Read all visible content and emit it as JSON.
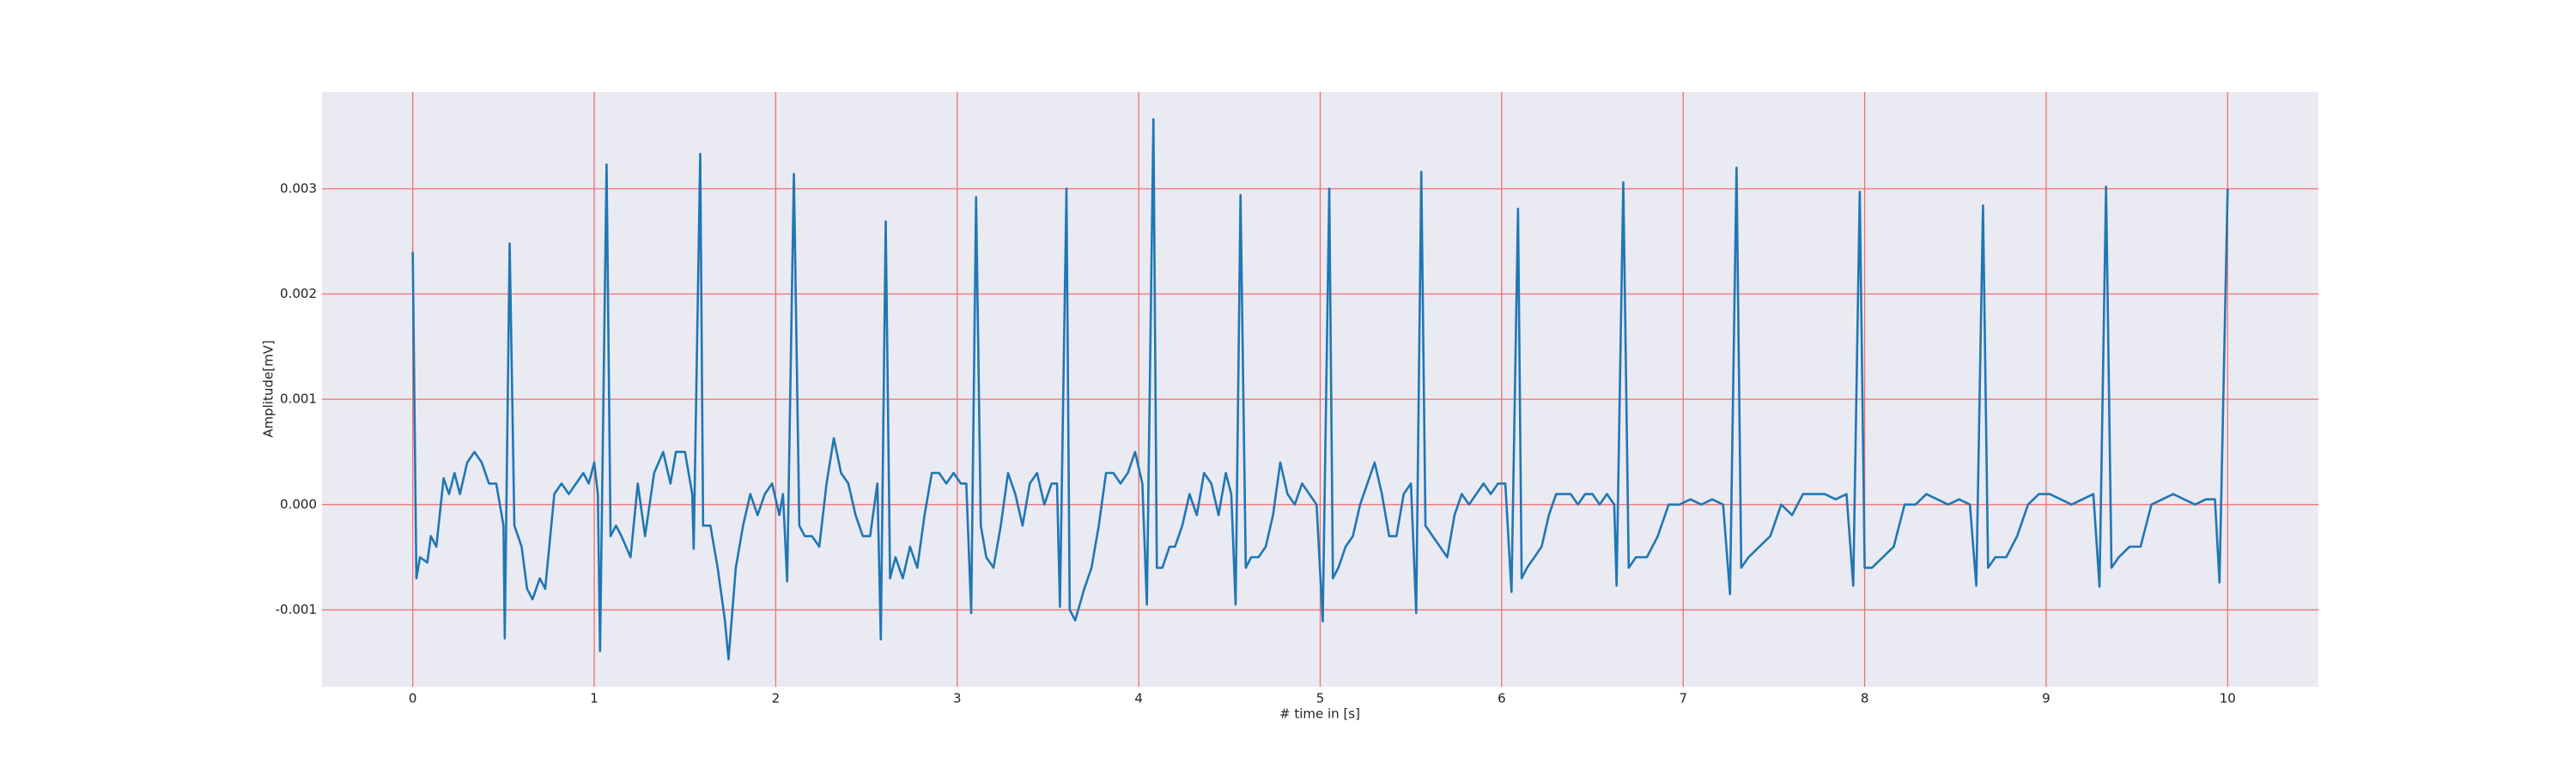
{
  "chart_data": {
    "type": "line",
    "xlabel": "# time in [s]",
    "ylabel": "Amplitude[mV]",
    "xlim": [
      -0.5,
      10.5
    ],
    "ylim": [
      -0.00173,
      0.00392
    ],
    "xticks": [
      0,
      1,
      2,
      3,
      4,
      5,
      6,
      7,
      8,
      9,
      10
    ],
    "yticks": [
      -0.001,
      {
        "value": 0,
        "label": "0.000"
      },
      0.001,
      0.002,
      0.003
    ],
    "grid": true,
    "grid_color": "#f07070",
    "background": "#eaeaf2",
    "color": "#1f77b4",
    "x": [
      0,
      0.02,
      0.04,
      0.08,
      0.1,
      0.13,
      0.17,
      0.2,
      0.23,
      0.26,
      0.3,
      0.34,
      0.38,
      0.42,
      0.46,
      0.5,
      0.507,
      0.534,
      0.56,
      0.6,
      0.63,
      0.66,
      0.7,
      0.73,
      0.78,
      0.82,
      0.86,
      0.9,
      0.94,
      0.97,
      1.0,
      1.02,
      1.032,
      1.068,
      1.09,
      1.12,
      1.15,
      1.2,
      1.24,
      1.28,
      1.33,
      1.38,
      1.42,
      1.45,
      1.5,
      1.54,
      1.548,
      1.584,
      1.6,
      1.64,
      1.68,
      1.72,
      1.74,
      1.78,
      1.82,
      1.86,
      1.9,
      1.94,
      1.98,
      2.02,
      2.04,
      2.063,
      2.1,
      2.13,
      2.16,
      2.2,
      2.24,
      2.28,
      2.32,
      2.36,
      2.4,
      2.44,
      2.48,
      2.52,
      2.56,
      2.579,
      2.606,
      2.63,
      2.66,
      2.7,
      2.74,
      2.78,
      2.82,
      2.86,
      2.9,
      2.94,
      2.98,
      3.02,
      3.05,
      3.077,
      3.104,
      3.13,
      3.16,
      3.2,
      3.24,
      3.28,
      3.32,
      3.36,
      3.4,
      3.44,
      3.48,
      3.52,
      3.55,
      3.566,
      3.602,
      3.62,
      3.65,
      3.7,
      3.74,
      3.78,
      3.82,
      3.86,
      3.9,
      3.94,
      3.98,
      4.02,
      4.045,
      4.081,
      4.1,
      4.13,
      4.17,
      4.2,
      4.24,
      4.28,
      4.32,
      4.36,
      4.4,
      4.44,
      4.48,
      4.51,
      4.534,
      4.561,
      4.59,
      4.62,
      4.66,
      4.7,
      4.74,
      4.78,
      4.82,
      4.86,
      4.9,
      4.94,
      4.98,
      5.014,
      5.05,
      5.07,
      5.1,
      5.14,
      5.18,
      5.22,
      5.26,
      5.3,
      5.34,
      5.38,
      5.42,
      5.46,
      5.5,
      5.529,
      5.557,
      5.58,
      5.62,
      5.66,
      5.7,
      5.74,
      5.78,
      5.82,
      5.86,
      5.9,
      5.94,
      5.98,
      6.02,
      6.054,
      6.09,
      6.11,
      6.14,
      6.18,
      6.22,
      6.26,
      6.3,
      6.34,
      6.38,
      6.42,
      6.46,
      6.5,
      6.54,
      6.58,
      6.62,
      6.633,
      6.67,
      6.7,
      6.74,
      6.8,
      6.86,
      6.92,
      6.98,
      7.04,
      7.1,
      7.16,
      7.22,
      7.258,
      7.294,
      7.32,
      7.36,
      7.42,
      7.48,
      7.54,
      7.6,
      7.66,
      7.72,
      7.78,
      7.84,
      7.9,
      7.937,
      7.973,
      8.0,
      8.04,
      8.1,
      8.16,
      8.22,
      8.28,
      8.34,
      8.4,
      8.46,
      8.52,
      8.58,
      8.615,
      8.652,
      8.68,
      8.72,
      8.78,
      8.84,
      8.9,
      8.96,
      9.02,
      9.08,
      9.14,
      9.2,
      9.26,
      9.294,
      9.33,
      9.36,
      9.4,
      9.46,
      9.52,
      9.58,
      9.64,
      9.7,
      9.76,
      9.82,
      9.88,
      9.93,
      9.955,
      10.0
    ],
    "values": [
      0.0024,
      -0.0007,
      -0.0005,
      -0.00055,
      -0.0003,
      -0.0004,
      0.00025,
      0.0001,
      0.0003,
      0.0001,
      0.0004,
      0.0005,
      0.0004,
      0.0002,
      0.0002,
      -0.0002,
      -0.00127,
      0.00248,
      -0.0002,
      -0.0004,
      -0.0008,
      -0.0009,
      -0.0007,
      -0.0008,
      0.0001,
      0.0002,
      0.0001,
      0.0002,
      0.0003,
      0.0002,
      0.0004,
      0.0001,
      -0.00139,
      0.00323,
      -0.0003,
      -0.0002,
      -0.0003,
      -0.0005,
      0.0002,
      -0.0003,
      0.0003,
      0.0005,
      0.0002,
      0.0005,
      0.0005,
      0.0001,
      -0.00042,
      0.00333,
      -0.0002,
      -0.0002,
      -0.0006,
      -0.0011,
      -0.00147,
      -0.0006,
      -0.0002,
      0.0001,
      -0.0001,
      0.0001,
      0.0002,
      -0.0001,
      0.0001,
      -0.00073,
      0.00314,
      -0.0002,
      -0.0003,
      -0.0003,
      -0.0004,
      0.0002,
      0.00063,
      0.0003,
      0.0002,
      -0.0001,
      -0.0003,
      -0.0003,
      0.0002,
      -0.00128,
      0.00269,
      -0.0007,
      -0.0005,
      -0.0007,
      -0.0004,
      -0.0006,
      -0.0001,
      0.0003,
      0.0003,
      0.0002,
      0.0003,
      0.0002,
      0.0002,
      -0.00103,
      0.00292,
      -0.0002,
      -0.0005,
      -0.0006,
      -0.0002,
      0.0003,
      0.0001,
      -0.0002,
      0.0002,
      0.0003,
      0,
      0.0002,
      0.0002,
      -0.00097,
      0.003,
      -0.001,
      -0.0011,
      -0.0008,
      -0.0006,
      -0.0002,
      0.0003,
      0.0003,
      0.0002,
      0.0003,
      0.0005,
      0.0002,
      -0.00095,
      0.00366,
      -0.0006,
      -0.0006,
      -0.0004,
      -0.0004,
      -0.0002,
      0.0001,
      -0.0001,
      0.0003,
      0.0002,
      -0.0001,
      0.0003,
      0.0001,
      -0.00095,
      0.00294,
      -0.0006,
      -0.0005,
      -0.0005,
      -0.0004,
      -0.0001,
      0.0004,
      0.0001,
      0,
      0.0002,
      0.0001,
      0,
      -0.00111,
      0.003,
      -0.0007,
      -0.0006,
      -0.0004,
      -0.0003,
      0,
      0.0002,
      0.0004,
      0.0001,
      -0.0003,
      -0.0003,
      0.0001,
      0.0002,
      -0.00103,
      0.00316,
      -0.0002,
      -0.0003,
      -0.0004,
      -0.0005,
      -0.0001,
      0.0001,
      0,
      0.0001,
      0.0002,
      0.0001,
      0.0002,
      0.0002,
      -0.00083,
      0.00281,
      -0.0007,
      -0.0006,
      -0.0005,
      -0.0004,
      -0.0001,
      0.0001,
      0.0001,
      0.0001,
      0,
      0.0001,
      0.0001,
      0,
      0.0001,
      0,
      -0.00077,
      0.00306,
      -0.0006,
      -0.0005,
      -0.0005,
      -0.0003,
      0,
      0,
      5e-05,
      0,
      5e-05,
      0,
      -0.00085,
      0.0032,
      -0.0006,
      -0.0005,
      -0.0004,
      -0.0003,
      0,
      -0.0001,
      0.0001,
      0.0001,
      0.0001,
      5e-05,
      0.0001,
      -0.00077,
      0.00297,
      -0.0006,
      -0.0006,
      -0.0005,
      -0.0004,
      0,
      0,
      0.0001,
      5e-05,
      0,
      5e-05,
      0,
      -0.00077,
      0.00284,
      -0.0006,
      -0.0005,
      -0.0005,
      -0.0003,
      0,
      0.0001,
      0.0001,
      5e-05,
      0,
      5e-05,
      0.0001,
      -0.00078,
      0.00302,
      -0.0006,
      -0.0005,
      -0.0004,
      -0.0004,
      0,
      5e-05,
      0.0001,
      5e-05,
      0,
      5e-05,
      5e-05,
      -0.00074,
      0.003
    ]
  }
}
